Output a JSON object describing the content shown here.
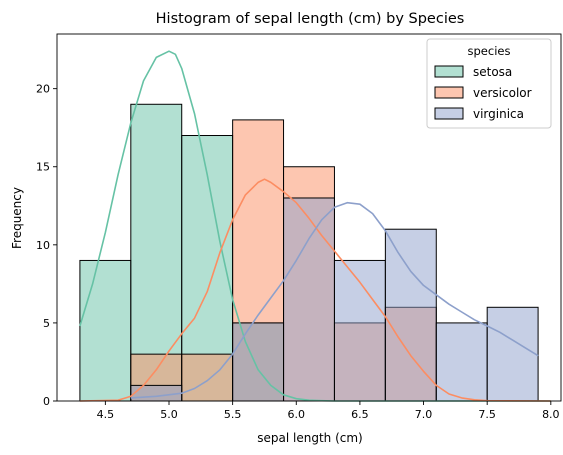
{
  "chart_data": {
    "type": "bar",
    "title": "Histogram of sepal length (cm) by Species",
    "xlabel": "sepal length (cm)",
    "ylabel": "Frequency",
    "xlim": [
      4.12,
      8.08
    ],
    "ylim": [
      0,
      23.5
    ],
    "xticks": [
      4.5,
      5.0,
      5.5,
      6.0,
      6.5,
      7.0,
      7.5,
      8.0
    ],
    "xtick_labels": [
      "4.5",
      "5.0",
      "5.5",
      "6.0",
      "6.5",
      "7.0",
      "7.5",
      "8.0"
    ],
    "yticks": [
      0,
      5,
      10,
      15,
      20
    ],
    "ytick_labels": [
      "0",
      "5",
      "10",
      "15",
      "20"
    ],
    "bin_edges": [
      4.3,
      4.7,
      5.1,
      5.5,
      5.9,
      6.3,
      6.7,
      7.1,
      7.5,
      7.9
    ],
    "grid": false,
    "legend": {
      "title": "species",
      "placement": "top-right"
    },
    "series": [
      {
        "name": "setosa",
        "color": "#66c2a5",
        "values": [
          9,
          19,
          17,
          5,
          0,
          0,
          0,
          0,
          0
        ],
        "kde": [
          [
            4.3,
            4.8
          ],
          [
            4.4,
            7.5
          ],
          [
            4.5,
            10.8
          ],
          [
            4.6,
            14.5
          ],
          [
            4.7,
            17.8
          ],
          [
            4.8,
            20.5
          ],
          [
            4.9,
            22.0
          ],
          [
            5.0,
            22.4
          ],
          [
            5.05,
            22.2
          ],
          [
            5.1,
            21.3
          ],
          [
            5.2,
            18.4
          ],
          [
            5.3,
            14.5
          ],
          [
            5.4,
            10.2
          ],
          [
            5.5,
            6.5
          ],
          [
            5.6,
            3.8
          ],
          [
            5.7,
            2.0
          ],
          [
            5.8,
            1.0
          ],
          [
            5.9,
            0.4
          ],
          [
            6.0,
            0.15
          ],
          [
            6.1,
            0.05
          ],
          [
            6.2,
            0.02
          ],
          [
            6.3,
            0.0
          ],
          [
            8.0,
            0.0
          ]
        ]
      },
      {
        "name": "versicolor",
        "color": "#fc8d62",
        "values": [
          0,
          3,
          3,
          18,
          15,
          5,
          6,
          0,
          0
        ],
        "kde": [
          [
            4.3,
            0.0
          ],
          [
            4.6,
            0.05
          ],
          [
            4.7,
            0.3
          ],
          [
            4.8,
            1.0
          ],
          [
            4.9,
            2.0
          ],
          [
            5.0,
            3.2
          ],
          [
            5.1,
            4.3
          ],
          [
            5.2,
            5.3
          ],
          [
            5.3,
            7.0
          ],
          [
            5.4,
            9.5
          ],
          [
            5.5,
            11.6
          ],
          [
            5.6,
            13.2
          ],
          [
            5.7,
            14.0
          ],
          [
            5.75,
            14.2
          ],
          [
            5.8,
            14.0
          ],
          [
            5.9,
            13.4
          ],
          [
            6.0,
            12.7
          ],
          [
            6.1,
            11.7
          ],
          [
            6.2,
            10.6
          ],
          [
            6.3,
            9.6
          ],
          [
            6.4,
            8.6
          ],
          [
            6.5,
            7.6
          ],
          [
            6.6,
            6.5
          ],
          [
            6.7,
            5.4
          ],
          [
            6.8,
            4.1
          ],
          [
            6.9,
            2.9
          ],
          [
            7.0,
            1.9
          ],
          [
            7.1,
            1.0
          ],
          [
            7.2,
            0.45
          ],
          [
            7.3,
            0.2
          ],
          [
            7.4,
            0.08
          ],
          [
            7.5,
            0.02
          ],
          [
            8.0,
            0.0
          ]
        ]
      },
      {
        "name": "virginica",
        "color": "#8da0cb",
        "values": [
          0,
          1,
          0,
          5,
          13,
          9,
          11,
          5,
          6
        ],
        "kde": [
          [
            4.7,
            0.2
          ],
          [
            4.9,
            0.3
          ],
          [
            5.1,
            0.5
          ],
          [
            5.2,
            0.8
          ],
          [
            5.3,
            1.3
          ],
          [
            5.4,
            2.0
          ],
          [
            5.5,
            3.0
          ],
          [
            5.6,
            4.3
          ],
          [
            5.7,
            5.5
          ],
          [
            5.8,
            6.6
          ],
          [
            5.9,
            7.7
          ],
          [
            6.0,
            9.0
          ],
          [
            6.1,
            10.4
          ],
          [
            6.2,
            11.6
          ],
          [
            6.3,
            12.4
          ],
          [
            6.4,
            12.7
          ],
          [
            6.5,
            12.6
          ],
          [
            6.6,
            12.0
          ],
          [
            6.7,
            10.9
          ],
          [
            6.8,
            9.5
          ],
          [
            6.9,
            8.3
          ],
          [
            7.0,
            7.4
          ],
          [
            7.1,
            6.8
          ],
          [
            7.2,
            6.2
          ],
          [
            7.3,
            5.7
          ],
          [
            7.4,
            5.2
          ],
          [
            7.5,
            4.8
          ],
          [
            7.6,
            4.4
          ],
          [
            7.7,
            3.9
          ],
          [
            7.8,
            3.4
          ],
          [
            7.9,
            2.9
          ]
        ]
      }
    ]
  }
}
